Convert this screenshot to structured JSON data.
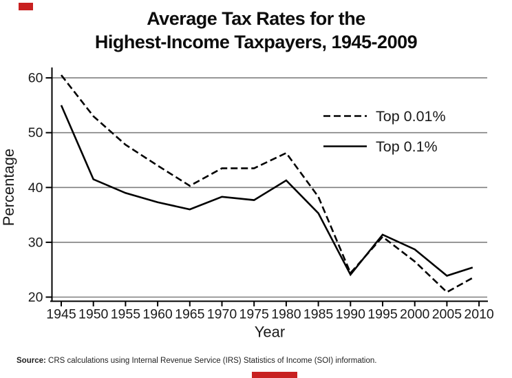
{
  "title": {
    "line1": "Average Tax Rates for the",
    "line2": "Highest-Income Taxpayers, 1945-2009"
  },
  "source": {
    "label": "Source:",
    "text": " CRS calculations using Internal Revenue Service (IRS) Statistics of Income (SOI) information."
  },
  "colors": {
    "line": "#000000",
    "grid": "#7f7f7f",
    "accent_red": "#c82020"
  },
  "chart_data": {
    "type": "line",
    "title": "Average Tax Rates for the Highest-Income Taxpayers, 1945-2009",
    "xlabel": "Year",
    "ylabel": "Percentage",
    "x": [
      1945,
      1950,
      1955,
      1960,
      1965,
      1970,
      1975,
      1980,
      1985,
      1990,
      1995,
      2000,
      2005,
      2009
    ],
    "series": [
      {
        "name": "Top 0.01%",
        "style": "dashed",
        "values": [
          60.5,
          53.0,
          47.8,
          44.0,
          40.3,
          43.5,
          43.5,
          46.3,
          38.3,
          24.4,
          31.0,
          26.5,
          20.9,
          23.5
        ]
      },
      {
        "name": "Top 0.1%",
        "style": "solid",
        "values": [
          55.0,
          41.5,
          39.0,
          37.3,
          36.0,
          38.3,
          37.7,
          41.3,
          35.3,
          24.1,
          31.4,
          28.7,
          23.9,
          25.4
        ]
      }
    ],
    "xticks": [
      1945,
      1950,
      1955,
      1960,
      1965,
      1970,
      1975,
      1980,
      1985,
      1990,
      1995,
      2000,
      2005,
      2010
    ],
    "yticks": [
      20,
      30,
      40,
      50,
      60
    ],
    "xlim": [
      1943.5,
      2011.2
    ],
    "ylim": [
      20,
      62
    ],
    "grid": "horizontal",
    "legend_position": "upper-right-inside-no-box"
  }
}
